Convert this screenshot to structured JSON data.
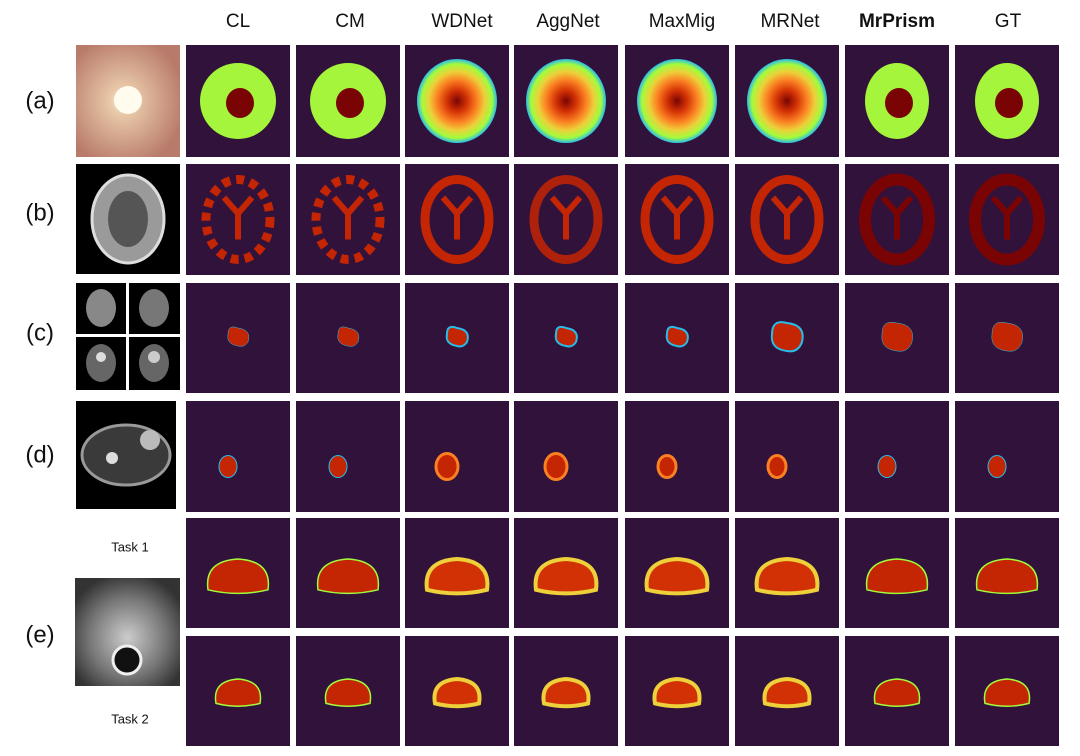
{
  "header": {
    "columns": [
      "CL",
      "CM",
      "WDNet",
      "AggNet",
      "MaxMig",
      "MRNet",
      "MrPrism",
      "GT"
    ]
  },
  "rows": [
    {
      "label": "(a)"
    },
    {
      "label": "(b)"
    },
    {
      "label": "(c)"
    },
    {
      "label": "(d)"
    },
    {
      "label": "(e)"
    }
  ],
  "tasks": [
    "Task 1",
    "Task 2"
  ]
}
